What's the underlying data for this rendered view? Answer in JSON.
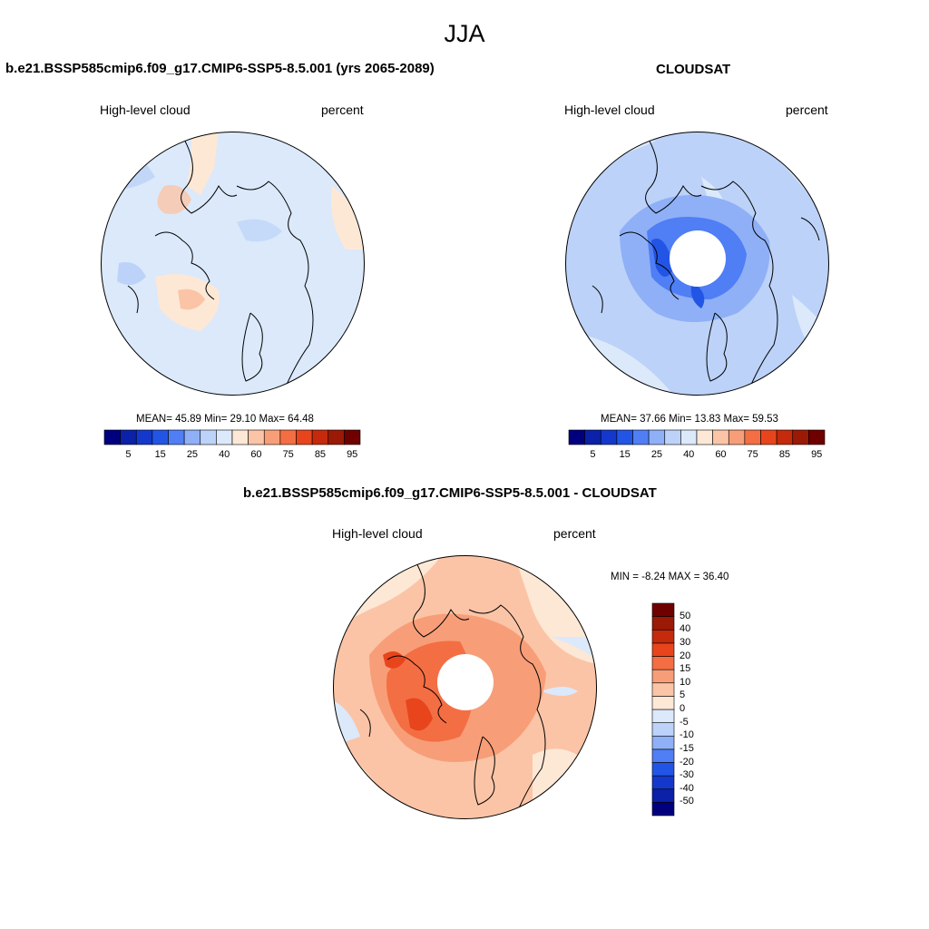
{
  "figure": {
    "season": "JJA",
    "variable": "High-level cloud",
    "units": "percent"
  },
  "panels": [
    {
      "id": "model",
      "title": "b.e21.BSSP585cmip6.f09_g17.CMIP6-SSP5-8.5.001 (yrs 2065-2089)",
      "left_label": "High-level cloud",
      "right_label": "percent",
      "stats_line": "MEAN=  45.89  Min=  29.10  Max=  64.48"
    },
    {
      "id": "obs",
      "title": "CLOUDSAT",
      "left_label": "High-level cloud",
      "right_label": "percent",
      "stats_line": "MEAN=  37.66  Min=  13.83  Max=  59.53"
    },
    {
      "id": "diff",
      "title": "b.e21.BSSP585cmip6.f09_g17.CMIP6-SSP5-8.5.001 - CLOUDSAT",
      "left_label": "High-level cloud",
      "right_label": "percent",
      "stats_line": "MIN =  -8.24 MAX =  36.40"
    }
  ],
  "colorbar_abs": {
    "colors": [
      "#00007f",
      "#0a21a8",
      "#1438cc",
      "#2255e5",
      "#4f7ef5",
      "#8fb0f7",
      "#bcd2f8",
      "#dbe9fb",
      "#fde8d6",
      "#fbc4a6",
      "#f79e78",
      "#f46e43",
      "#e8451d",
      "#c52a0c",
      "#9a1a06",
      "#6e0000"
    ],
    "labels": [
      "5",
      "15",
      "25",
      "40",
      "60",
      "75",
      "85",
      "95"
    ]
  },
  "colorbar_diff": {
    "colors": [
      "#00007f",
      "#0a21a8",
      "#1438cc",
      "#2255e5",
      "#4f7ef5",
      "#8fb0f7",
      "#bcd2f8",
      "#dbe9fb",
      "#fde8d6",
      "#fbc4a6",
      "#f79e78",
      "#f46e43",
      "#e8451d",
      "#c52a0c",
      "#9a1a06",
      "#6e0000"
    ],
    "labels": [
      "-50",
      "-40",
      "-30",
      "-20",
      "-15",
      "-10",
      "-5",
      "0",
      "5",
      "10",
      "15",
      "20",
      "30",
      "40",
      "50"
    ]
  }
}
